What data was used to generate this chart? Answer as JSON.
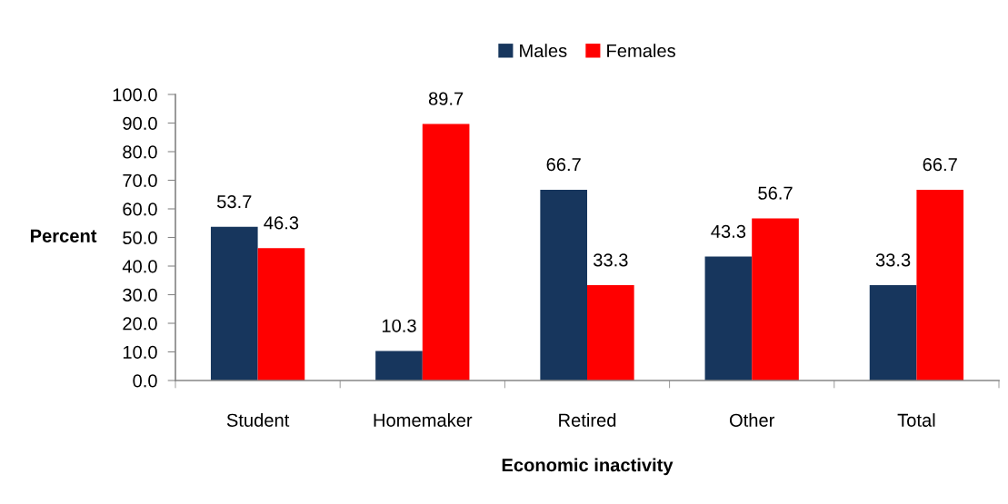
{
  "chart_data": {
    "type": "bar",
    "categories": [
      "Student",
      "Homemaker",
      "Retired",
      "Other",
      "Total"
    ],
    "series": [
      {
        "name": "Males",
        "color": "#17365d",
        "values": [
          53.7,
          10.3,
          66.7,
          43.3,
          33.3
        ]
      },
      {
        "name": "Females",
        "color": "#ff0000",
        "values": [
          46.3,
          89.7,
          33.3,
          56.7,
          66.7
        ]
      }
    ],
    "xlabel": "Economic inactivity",
    "ylabel": "Percent",
    "ylim": [
      0,
      100
    ],
    "yticks": [
      {
        "value": 0,
        "label": "0.0"
      },
      {
        "value": 10,
        "label": "10.0"
      },
      {
        "value": 20,
        "label": "20.0"
      },
      {
        "value": 30,
        "label": "30.0"
      },
      {
        "value": 40,
        "label": "40.0"
      },
      {
        "value": 50,
        "label": "50.0"
      },
      {
        "value": 60,
        "label": "60.0"
      },
      {
        "value": 70,
        "label": "70.0"
      },
      {
        "value": 80,
        "label": "80.0"
      },
      {
        "value": 90,
        "label": "90.0"
      },
      {
        "value": 100,
        "label": "100.0"
      }
    ],
    "data_labels": true,
    "legend": "top",
    "grid": false
  }
}
